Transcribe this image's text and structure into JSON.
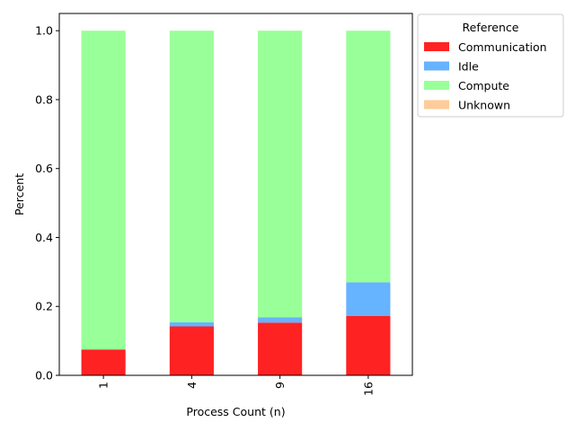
{
  "chart_data": {
    "type": "bar",
    "stacked": true,
    "categories": [
      "1",
      "4",
      "9",
      "16"
    ],
    "xlabel": "Process Count (n)",
    "ylabel": "Percent",
    "ylim": [
      0,
      1.05
    ],
    "yticks": [
      "0.0",
      "0.2",
      "0.4",
      "0.6",
      "0.8",
      "1.0"
    ],
    "legend": {
      "title": "Reference",
      "placement": "outside-top-right"
    },
    "series": [
      {
        "name": "Communication",
        "color": "#ff2222",
        "values": [
          0.075,
          0.142,
          0.153,
          0.172
        ]
      },
      {
        "name": "Idle",
        "color": "#66b3ff",
        "values": [
          0.0,
          0.012,
          0.015,
          0.098
        ]
      },
      {
        "name": "Compute",
        "color": "#99ff99",
        "values": [
          0.925,
          0.846,
          0.832,
          0.73
        ]
      },
      {
        "name": "Unknown",
        "color": "#ffcc99",
        "values": [
          0.0,
          0.0,
          0.0,
          0.0
        ]
      }
    ]
  }
}
